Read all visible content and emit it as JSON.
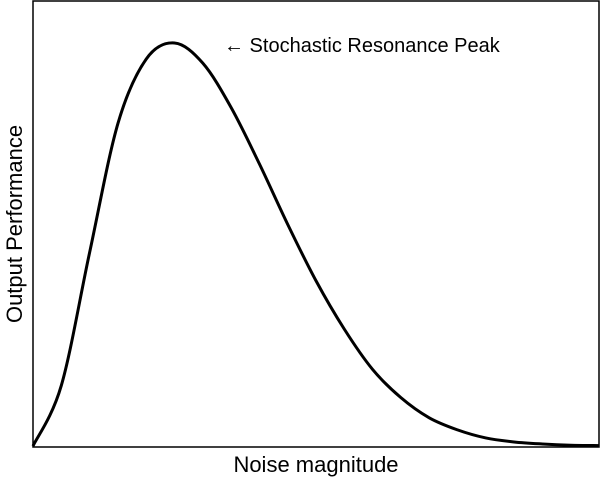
{
  "chart_data": {
    "type": "line",
    "title": "",
    "xlabel": "Noise magnitude",
    "ylabel": "Output Performance",
    "xlim": [
      0,
      10
    ],
    "ylim": [
      0,
      1.0
    ],
    "grid": false,
    "legend": "none",
    "x_ticks_shown": false,
    "y_ticks_shown": false,
    "series": [
      {
        "x": [
          0,
          0.5,
          1.0,
          1.5,
          2.0,
          2.5,
          3.0,
          3.5,
          4.0,
          4.5,
          5.0,
          5.5,
          6.0,
          6.5,
          7.0,
          7.5,
          8.0,
          8.5,
          9.0,
          9.5,
          10.0
        ],
        "y": [
          0.0,
          0.15,
          0.48,
          0.8,
          0.96,
          1.0,
          0.95,
          0.84,
          0.7,
          0.55,
          0.41,
          0.29,
          0.19,
          0.12,
          0.07,
          0.04,
          0.02,
          0.01,
          0.005,
          0.002,
          0.001
        ],
        "color": "#000000"
      }
    ],
    "annotations": [
      {
        "text": "← Stochastic Resonance Peak",
        "x": 2.5,
        "y": 1.0
      }
    ]
  }
}
